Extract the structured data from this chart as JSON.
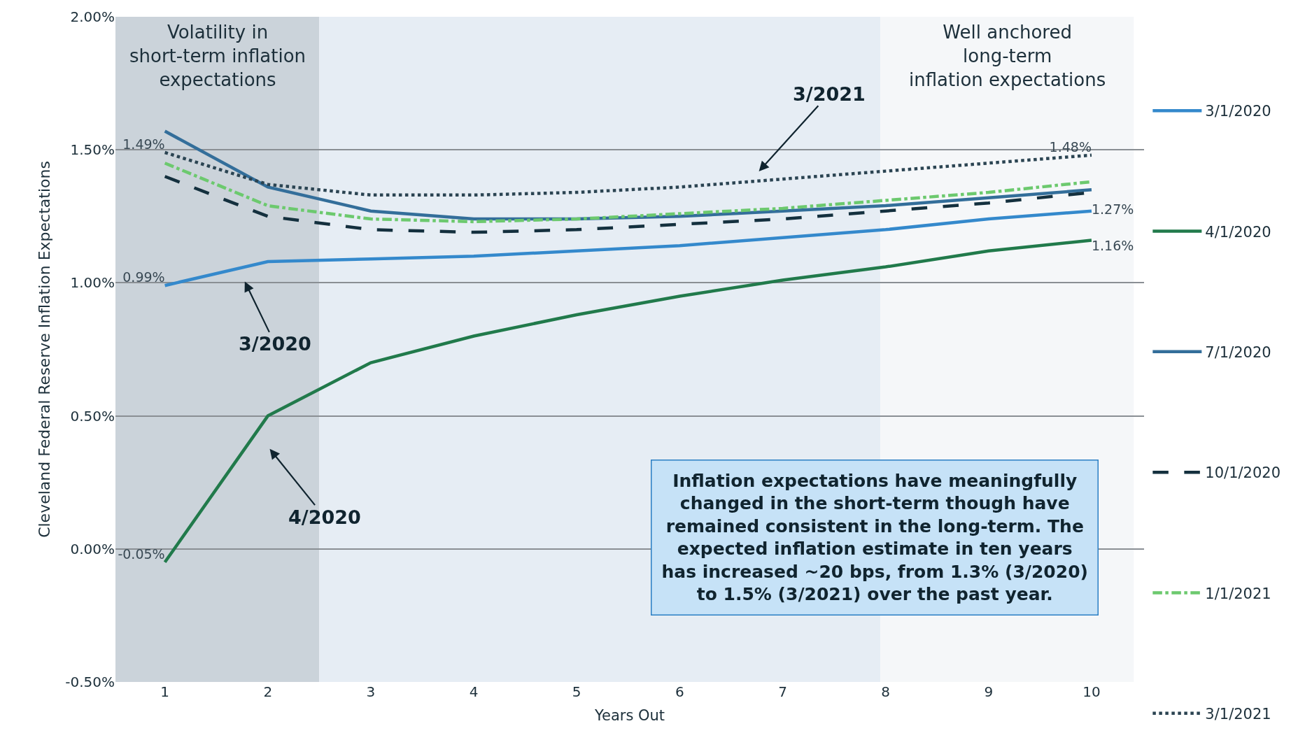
{
  "chart_data": {
    "type": "line",
    "xlabel": "Years Out",
    "ylabel": "Cleveland Federal Reserve Inflation Expectations",
    "x": [
      1,
      2,
      3,
      4,
      5,
      6,
      7,
      8,
      9,
      10
    ],
    "xlim": [
      0.52,
      10.51
    ],
    "xticks": [
      1,
      2,
      3,
      4,
      5,
      6,
      7,
      8,
      9,
      10
    ],
    "ylim": [
      -0.5,
      2.0
    ],
    "yticks": [
      {
        "value": -0.5,
        "label": "-0.50%"
      },
      {
        "value": 0,
        "label": "0.00%"
      },
      {
        "value": 0.5,
        "label": "0.50%"
      },
      {
        "value": 1.0,
        "label": "1.00%"
      },
      {
        "value": 1.5,
        "label": "1.50%"
      },
      {
        "value": 2.0,
        "label": "2.00%"
      }
    ],
    "grid": "y",
    "legend": "right",
    "marker": "none",
    "series": [
      {
        "name": "3/1/2020",
        "color": "#3489cc",
        "line_style": "solid",
        "values": [
          0.99,
          1.08,
          1.09,
          1.1,
          1.12,
          1.14,
          1.17,
          1.2,
          1.24,
          1.27
        ],
        "value_labels": [
          "0.99%",
          null,
          null,
          null,
          null,
          null,
          null,
          null,
          null,
          "1.27%"
        ]
      },
      {
        "name": "4/1/2020",
        "color": "#217a4b",
        "line_style": "solid",
        "values": [
          -0.05,
          0.5,
          0.7,
          0.8,
          0.88,
          0.95,
          1.01,
          1.06,
          1.12,
          1.16
        ],
        "value_labels": [
          "-0.05%",
          null,
          null,
          null,
          null,
          null,
          null,
          null,
          null,
          "1.16%"
        ]
      },
      {
        "name": "7/1/2020",
        "color": "#336e9a",
        "line_style": "solid",
        "values": [
          1.57,
          1.36,
          1.27,
          1.24,
          1.24,
          1.25,
          1.27,
          1.29,
          1.32,
          1.35
        ]
      },
      {
        "name": "10/1/2020",
        "color": "#14303e",
        "line_style": "dashed",
        "values": [
          1.4,
          1.25,
          1.2,
          1.19,
          1.2,
          1.22,
          1.24,
          1.27,
          1.3,
          1.34
        ]
      },
      {
        "name": "1/1/2021",
        "color": "#6cc96e",
        "line_style": "dashdot",
        "values": [
          1.45,
          1.29,
          1.24,
          1.23,
          1.24,
          1.26,
          1.28,
          1.31,
          1.34,
          1.38
        ]
      },
      {
        "name": "3/1/2021",
        "color": "#2b4452",
        "line_style": "dotted",
        "values": [
          1.49,
          1.37,
          1.33,
          1.33,
          1.34,
          1.36,
          1.39,
          1.42,
          1.45,
          1.48
        ],
        "value_labels": [
          "1.49%",
          null,
          null,
          null,
          null,
          null,
          null,
          null,
          null,
          "1.48%"
        ]
      }
    ],
    "bands": [
      {
        "axis": "x",
        "from": 0.52,
        "to": 2.5,
        "label": "Volatility in\nshort-term inflation\nexpectations",
        "color": "#cbd3da"
      },
      {
        "axis": "x",
        "from": 2.5,
        "to": 7.95,
        "color": "#e6edf4"
      },
      {
        "axis": "x",
        "from": 7.95,
        "to": 10.41,
        "label": "Well anchored\nlong-term\ninflation expectations",
        "color": "#f5f7f9"
      }
    ],
    "annotations": [
      "3/2020",
      "4/2020",
      "3/2021",
      "Inflation expectations have meaningfully\nchanged in the short-term though have\nremained consistent in the long-term. The\nexpected inflation estimate in ten years\nhas increased ~20 bps, from 1.3% (3/2020)\nto 1.5% (3/2021) over the past year."
    ]
  }
}
